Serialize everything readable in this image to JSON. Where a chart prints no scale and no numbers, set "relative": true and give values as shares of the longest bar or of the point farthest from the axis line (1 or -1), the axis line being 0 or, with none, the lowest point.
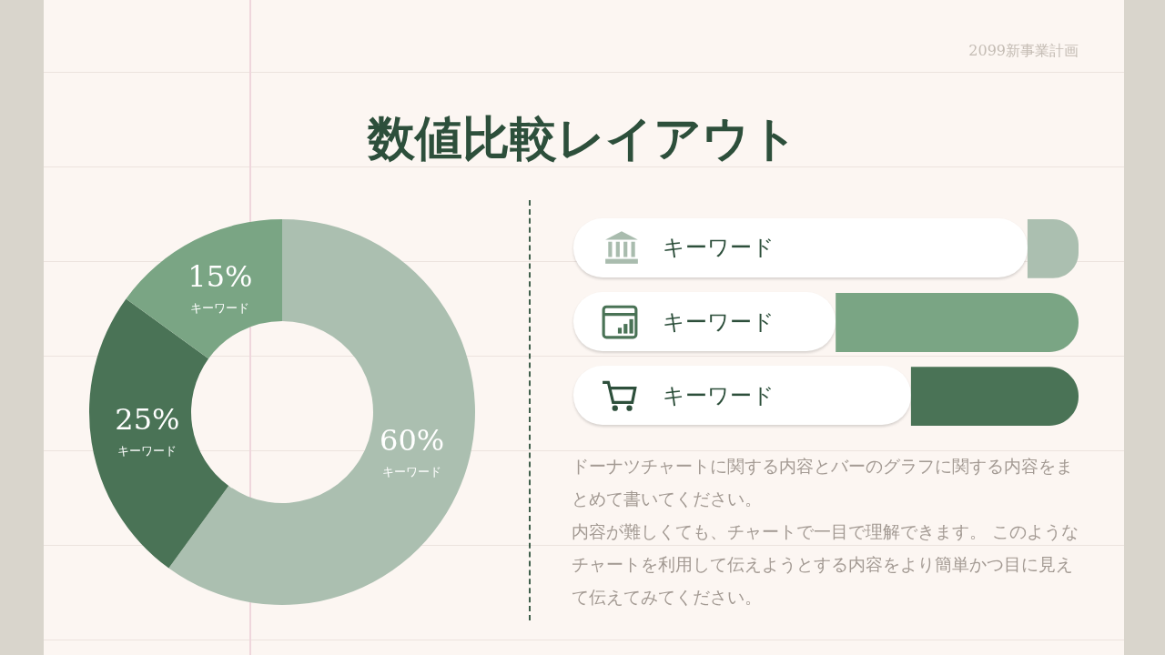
{
  "chart_data": [
    {
      "type": "donut",
      "title": "数値比較レイアウト",
      "annotations": [
        "2099新事業計画"
      ],
      "categories": [
        "キーワード",
        "キーワード",
        "キーワード"
      ],
      "values": [
        60,
        25,
        15
      ],
      "colors": [
        "#abbfb0",
        "#4a7356",
        "#7aa584"
      ],
      "value_labels": [
        "60%",
        "25%",
        "15%"
      ]
    },
    {
      "type": "bar",
      "orientation": "horizontal",
      "relative": true,
      "categories": [
        "キーワード",
        "キーワード",
        "キーワード"
      ],
      "values": [
        0.21,
        1,
        0.69
      ],
      "xlim": [
        2.08,
        0
      ],
      "colors": [
        "#abbfb0",
        "#7aa584",
        "#4a7356"
      ],
      "annotations": [
        "ドーナツチャートに関する内容とバーのグラフに関する内容をまとめて書いてください。",
        "内容が難しくても、チャートで一目で理解できます。 このようなチャートを利用して伝えようとする内容をより簡単かつ目に見えて伝えてみてください。"
      ]
    }
  ]
}
